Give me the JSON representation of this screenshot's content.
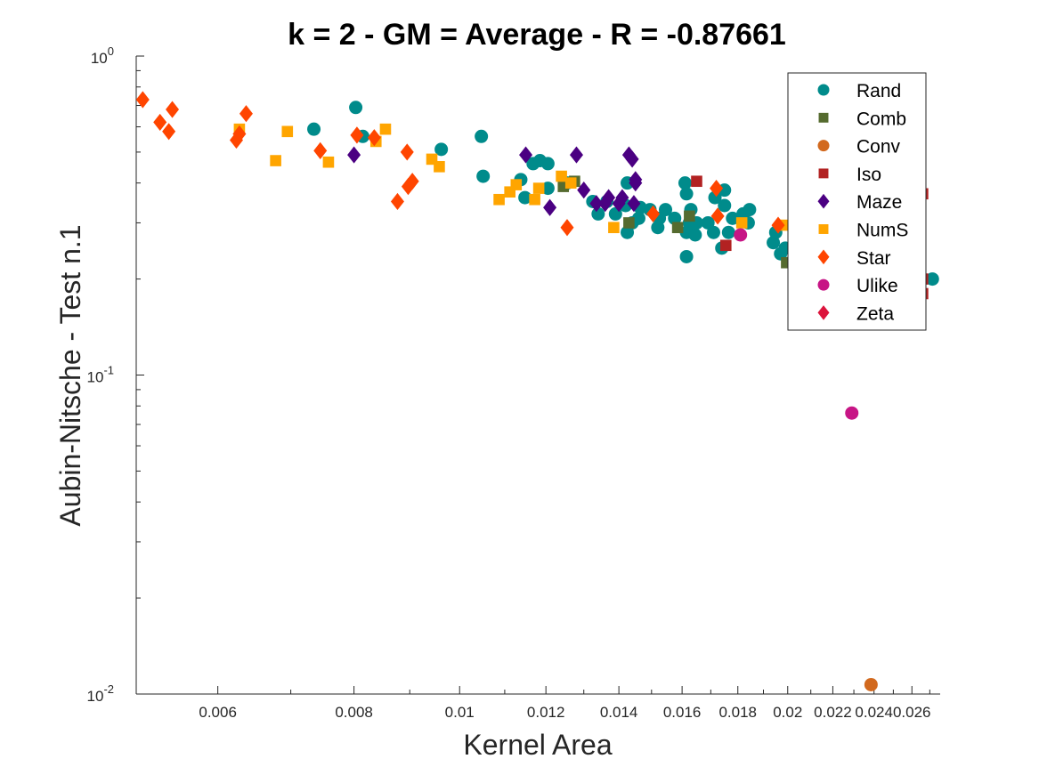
{
  "chart_data": {
    "type": "scatter",
    "title": "k = 2 - GM = Average - R = -0.87661",
    "xlabel": "Kernel Area",
    "ylabel": "Aubin-Nitsche - Test n.1",
    "xscale": "log",
    "yscale": "log",
    "xlim": [
      0.00505,
      0.0276
    ],
    "ylim": [
      0.01,
      1.0
    ],
    "grid": false,
    "legend_position": "top-right",
    "x_ticks": [
      {
        "value": 0.006,
        "label": "0.006"
      },
      {
        "value": 0.008,
        "label": "0.008"
      },
      {
        "value": 0.01,
        "label": "0.01"
      },
      {
        "value": 0.012,
        "label": "0.012"
      },
      {
        "value": 0.014,
        "label": "0.014"
      },
      {
        "value": 0.016,
        "label": "0.016"
      },
      {
        "value": 0.018,
        "label": "0.018"
      },
      {
        "value": 0.02,
        "label": "0.02"
      },
      {
        "value": 0.022,
        "label": "0.022"
      },
      {
        "value": 0.024,
        "label": "0.024"
      },
      {
        "value": 0.026,
        "label": "0.026"
      }
    ],
    "y_ticks": [
      {
        "value": 1.0,
        "base": "10",
        "exp": "0"
      },
      {
        "value": 0.1,
        "base": "10",
        "exp": "-1"
      },
      {
        "value": 0.01,
        "base": "10",
        "exp": "-2"
      }
    ],
    "series": [
      {
        "name": "Rand",
        "marker": "circle",
        "color": "#008B8B",
        "points": [
          [
            0.00735,
            0.59
          ],
          [
            0.00803,
            0.69
          ],
          [
            0.00815,
            0.56
          ],
          [
            0.00962,
            0.51
          ],
          [
            0.01047,
            0.56
          ],
          [
            0.01051,
            0.42
          ],
          [
            0.01138,
            0.41
          ],
          [
            0.01148,
            0.36
          ],
          [
            0.01168,
            0.46
          ],
          [
            0.01185,
            0.47
          ],
          [
            0.01205,
            0.46
          ],
          [
            0.01205,
            0.385
          ],
          [
            0.01255,
            0.4
          ],
          [
            0.01325,
            0.35
          ],
          [
            0.0134,
            0.32
          ],
          [
            0.01365,
            0.35
          ],
          [
            0.0139,
            0.32
          ],
          [
            0.0142,
            0.34
          ],
          [
            0.01425,
            0.4
          ],
          [
            0.01425,
            0.28
          ],
          [
            0.0144,
            0.3
          ],
          [
            0.0146,
            0.31
          ],
          [
            0.01465,
            0.335
          ],
          [
            0.01495,
            0.33
          ],
          [
            0.0152,
            0.29
          ],
          [
            0.01525,
            0.31
          ],
          [
            0.01545,
            0.33
          ],
          [
            0.01575,
            0.31
          ],
          [
            0.0161,
            0.4
          ],
          [
            0.01615,
            0.37
          ],
          [
            0.01615,
            0.28
          ],
          [
            0.01625,
            0.3
          ],
          [
            0.0163,
            0.33
          ],
          [
            0.01635,
            0.28
          ],
          [
            0.01645,
            0.275
          ],
          [
            0.01615,
            0.235
          ],
          [
            0.0165,
            0.3
          ],
          [
            0.0169,
            0.3
          ],
          [
            0.0171,
            0.28
          ],
          [
            0.01715,
            0.36
          ],
          [
            0.0174,
            0.25
          ],
          [
            0.0175,
            0.38
          ],
          [
            0.0175,
            0.34
          ],
          [
            0.01765,
            0.28
          ],
          [
            0.0178,
            0.31
          ],
          [
            0.0182,
            0.32
          ],
          [
            0.0184,
            0.3
          ],
          [
            0.01845,
            0.33
          ],
          [
            0.0194,
            0.26
          ],
          [
            0.0195,
            0.28
          ],
          [
            0.0197,
            0.24
          ],
          [
            0.0199,
            0.25
          ],
          [
            0.0206,
            0.25
          ],
          [
            0.02715,
            0.2
          ]
        ]
      },
      {
        "name": "Comb",
        "marker": "square",
        "color": "#556B2F",
        "points": [
          [
            0.01245,
            0.39
          ],
          [
            0.01275,
            0.405
          ],
          [
            0.0143,
            0.3
          ],
          [
            0.01585,
            0.29
          ],
          [
            0.01625,
            0.315
          ],
          [
            0.01995,
            0.225
          ]
        ]
      },
      {
        "name": "Conv",
        "marker": "circle",
        "color": "#D2691E",
        "points": [
          [
            0.02385,
            0.0107
          ]
        ]
      },
      {
        "name": "Iso",
        "marker": "square",
        "color": "#B22222",
        "points": [
          [
            0.0165,
            0.405
          ],
          [
            0.01755,
            0.255
          ],
          [
            0.0266,
            0.37
          ],
          [
            0.0266,
            0.2
          ],
          [
            0.0266,
            0.18
          ]
        ]
      },
      {
        "name": "Maze",
        "marker": "diamond",
        "color": "#4B0082",
        "points": [
          [
            0.008,
            0.49
          ],
          [
            0.0115,
            0.49
          ],
          [
            0.0121,
            0.335
          ],
          [
            0.0128,
            0.49
          ],
          [
            0.013,
            0.38
          ],
          [
            0.01335,
            0.345
          ],
          [
            0.0136,
            0.345
          ],
          [
            0.0137,
            0.36
          ],
          [
            0.014,
            0.345
          ],
          [
            0.0141,
            0.36
          ],
          [
            0.0143,
            0.49
          ],
          [
            0.0144,
            0.475
          ],
          [
            0.01445,
            0.345
          ],
          [
            0.0145,
            0.41
          ],
          [
            0.0145,
            0.4
          ]
        ]
      },
      {
        "name": "NumS",
        "marker": "square",
        "color": "#FFA500",
        "points": [
          [
            0.00628,
            0.59
          ],
          [
            0.00678,
            0.47
          ],
          [
            0.00695,
            0.58
          ],
          [
            0.00758,
            0.465
          ],
          [
            0.00838,
            0.54
          ],
          [
            0.00855,
            0.59
          ],
          [
            0.00943,
            0.475
          ],
          [
            0.00958,
            0.45
          ],
          [
            0.01087,
            0.355
          ],
          [
            0.01112,
            0.375
          ],
          [
            0.01127,
            0.395
          ],
          [
            0.01172,
            0.355
          ],
          [
            0.01182,
            0.385
          ],
          [
            0.0124,
            0.42
          ],
          [
            0.01265,
            0.4
          ],
          [
            0.01385,
            0.29
          ],
          [
            0.01815,
            0.3
          ],
          [
            0.0198,
            0.295
          ]
        ]
      },
      {
        "name": "Star",
        "marker": "diamond",
        "color": "#FF4500",
        "points": [
          [
            0.00512,
            0.73
          ],
          [
            0.00531,
            0.62
          ],
          [
            0.00541,
            0.58
          ],
          [
            0.00545,
            0.68
          ],
          [
            0.00624,
            0.545
          ],
          [
            0.00628,
            0.57
          ],
          [
            0.00637,
            0.66
          ],
          [
            0.00745,
            0.505
          ],
          [
            0.00805,
            0.565
          ],
          [
            0.00835,
            0.555
          ],
          [
            0.00877,
            0.35
          ],
          [
            0.00895,
            0.5
          ],
          [
            0.00897,
            0.39
          ],
          [
            0.00905,
            0.405
          ],
          [
            0.01255,
            0.29
          ],
          [
            0.01505,
            0.32
          ],
          [
            0.0172,
            0.385
          ],
          [
            0.01725,
            0.315
          ],
          [
            0.0196,
            0.295
          ]
        ]
      },
      {
        "name": "Ulike",
        "marker": "circle",
        "color": "#C71585",
        "points": [
          [
            0.0181,
            0.275
          ],
          [
            0.0229,
            0.076
          ]
        ]
      },
      {
        "name": "Zeta",
        "marker": "diamond",
        "color": "#DC143C",
        "points": []
      }
    ]
  }
}
